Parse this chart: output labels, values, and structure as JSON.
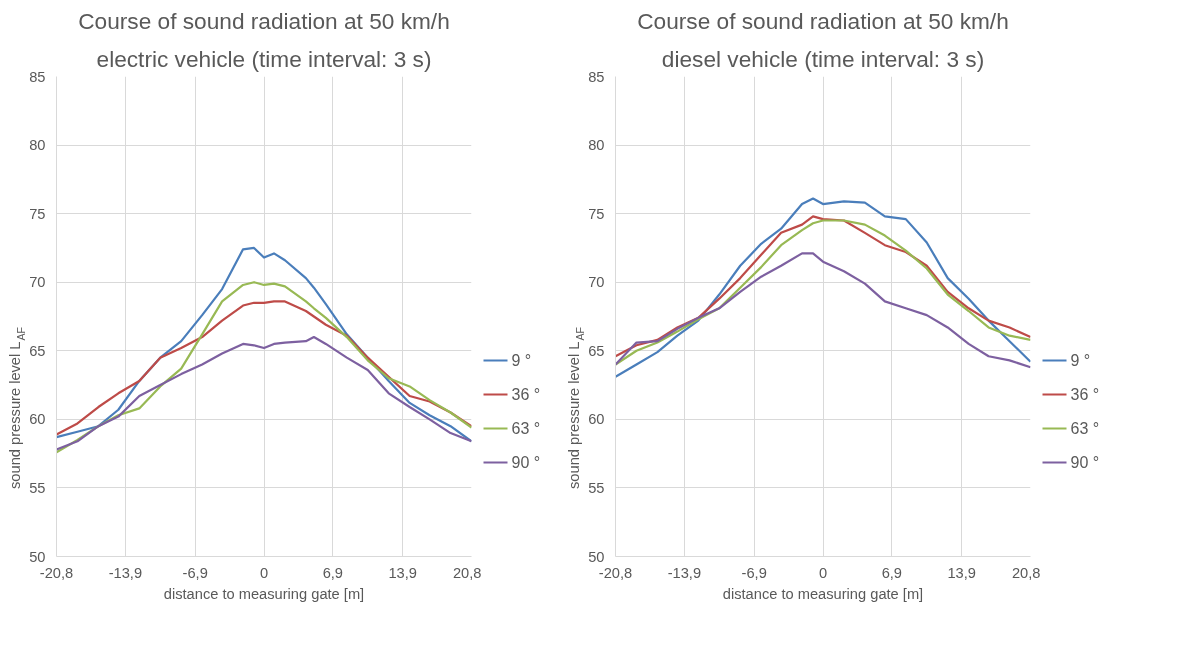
{
  "chart_data": [
    {
      "type": "line",
      "title": "Course of sound radiation at 50 km/h",
      "subtitle": "electric vehicle (time interval: 3 s)",
      "xlabel": "distance to measuring gate [m]",
      "ylabel": "sound pressure level L$_{AF}$",
      "x": [
        -20.8,
        -18.7,
        -16.6,
        -14.6,
        -12.5,
        -10.4,
        -8.3,
        -6.2,
        -4.2,
        -2.1,
        -1,
        0,
        1,
        2.1,
        4.2,
        5,
        6.2,
        8.3,
        10.4,
        12.5,
        14.6,
        16.6,
        18.7,
        20.8
      ],
      "series": [
        {
          "name": "9 °",
          "color": "#4a7ebb",
          "values": [
            58.7,
            59.1,
            59.5,
            60.7,
            62.8,
            64.5,
            65.7,
            67.6,
            69.5,
            72.4,
            72.5,
            71.8,
            72.1,
            71.6,
            70.3,
            69.6,
            68.4,
            66.2,
            64.5,
            62.8,
            61.2,
            60.3,
            59.5,
            58.4
          ]
        },
        {
          "name": "36 °",
          "color": "#be4b48",
          "values": [
            58.9,
            59.7,
            60.9,
            61.9,
            62.8,
            64.5,
            65.2,
            66.0,
            67.2,
            68.3,
            68.5,
            68.5,
            68.6,
            68.6,
            67.9,
            67.5,
            66.9,
            66.1,
            64.5,
            63.1,
            61.7,
            61.3,
            60.5,
            59.5
          ]
        },
        {
          "name": "63 °",
          "color": "#98b954",
          "values": [
            57.6,
            58.5,
            59.5,
            60.3,
            60.8,
            62.4,
            63.7,
            66.2,
            68.6,
            69.8,
            70.0,
            69.8,
            69.9,
            69.7,
            68.6,
            68.1,
            67.4,
            66.0,
            64.3,
            63.0,
            62.4,
            61.4,
            60.5,
            59.4
          ]
        },
        {
          "name": "90 °",
          "color": "#7d60a0",
          "values": [
            57.8,
            58.4,
            59.5,
            60.2,
            61.7,
            62.5,
            63.3,
            64.0,
            64.8,
            65.5,
            65.4,
            65.2,
            65.5,
            65.6,
            65.7,
            66.0,
            65.5,
            64.5,
            63.6,
            61.9,
            60.9,
            60.0,
            59.0,
            58.4
          ]
        }
      ],
      "xlim": [
        -20.8,
        20.8
      ],
      "xticks": [
        {
          "value": -20.8,
          "label": "-20,8"
        },
        {
          "value": -13.9,
          "label": "-13,9"
        },
        {
          "value": -6.9,
          "label": "-6,9"
        },
        0,
        {
          "value": 6.9,
          "label": "6,9"
        },
        {
          "value": 13.9,
          "label": "13,9"
        },
        {
          "value": 20.8,
          "label": "20,8"
        }
      ],
      "ylim": [
        50,
        85
      ],
      "yticks": [
        50,
        55,
        60,
        65,
        70,
        75,
        80,
        85
      ],
      "grid": true,
      "legend": "right",
      "marker": "none",
      "line_style": "solid"
    },
    {
      "type": "line",
      "title": "Course of sound radiation at 50 km/h",
      "subtitle": "diesel vehicle (time interval: 3 s)",
      "xlabel": "distance to measuring gate [m]",
      "ylabel": "sound pressure level L$_{AF}$",
      "x": [
        -20.8,
        -18.7,
        -16.6,
        -14.6,
        -12.5,
        -10.4,
        -8.3,
        -6.2,
        -4.2,
        -2.1,
        -1,
        0,
        2.1,
        4.2,
        6.2,
        8.3,
        10.4,
        12.5,
        14.6,
        16.6,
        18.7,
        20.8
      ],
      "series": [
        {
          "name": "9 °",
          "color": "#4a7ebb",
          "values": [
            63.1,
            64.0,
            64.9,
            66.1,
            67.2,
            69.1,
            71.2,
            72.8,
            73.9,
            75.7,
            76.1,
            75.7,
            75.9,
            75.8,
            74.8,
            74.6,
            72.9,
            70.3,
            68.8,
            67.2,
            65.7,
            64.2
          ]
        },
        {
          "name": "36 °",
          "color": "#be4b48",
          "values": [
            64.6,
            65.4,
            65.8,
            66.7,
            67.4,
            68.8,
            70.3,
            72.0,
            73.6,
            74.2,
            74.8,
            74.6,
            74.5,
            73.6,
            72.7,
            72.2,
            71.2,
            69.3,
            68.1,
            67.2,
            66.7,
            66.0
          ]
        },
        {
          "name": "63 °",
          "color": "#98b954",
          "values": [
            64.0,
            65.0,
            65.6,
            66.4,
            67.3,
            68.1,
            69.6,
            71.1,
            72.7,
            73.8,
            74.3,
            74.5,
            74.5,
            74.2,
            73.4,
            72.3,
            71.0,
            69.1,
            67.9,
            66.7,
            66.1,
            65.8
          ]
        },
        {
          "name": "90 °",
          "color": "#7d60a0",
          "values": [
            64.0,
            65.6,
            65.7,
            66.6,
            67.4,
            68.1,
            69.3,
            70.4,
            71.2,
            72.1,
            72.1,
            71.5,
            70.8,
            69.9,
            68.6,
            68.1,
            67.6,
            66.7,
            65.5,
            64.6,
            64.3,
            63.8
          ]
        }
      ],
      "xlim": [
        -20.8,
        20.8
      ],
      "xticks": [
        {
          "value": -20.8,
          "label": "-20,8"
        },
        {
          "value": -13.9,
          "label": "-13,9"
        },
        {
          "value": -6.9,
          "label": "-6,9"
        },
        0,
        {
          "value": 6.9,
          "label": "6,9"
        },
        {
          "value": 13.9,
          "label": "13,9"
        },
        {
          "value": 20.8,
          "label": "20,8"
        }
      ],
      "ylim": [
        50,
        85
      ],
      "yticks": [
        50,
        55,
        60,
        65,
        70,
        75,
        80,
        85
      ],
      "grid": true,
      "legend": "right",
      "marker": "none",
      "line_style": "solid"
    }
  ]
}
